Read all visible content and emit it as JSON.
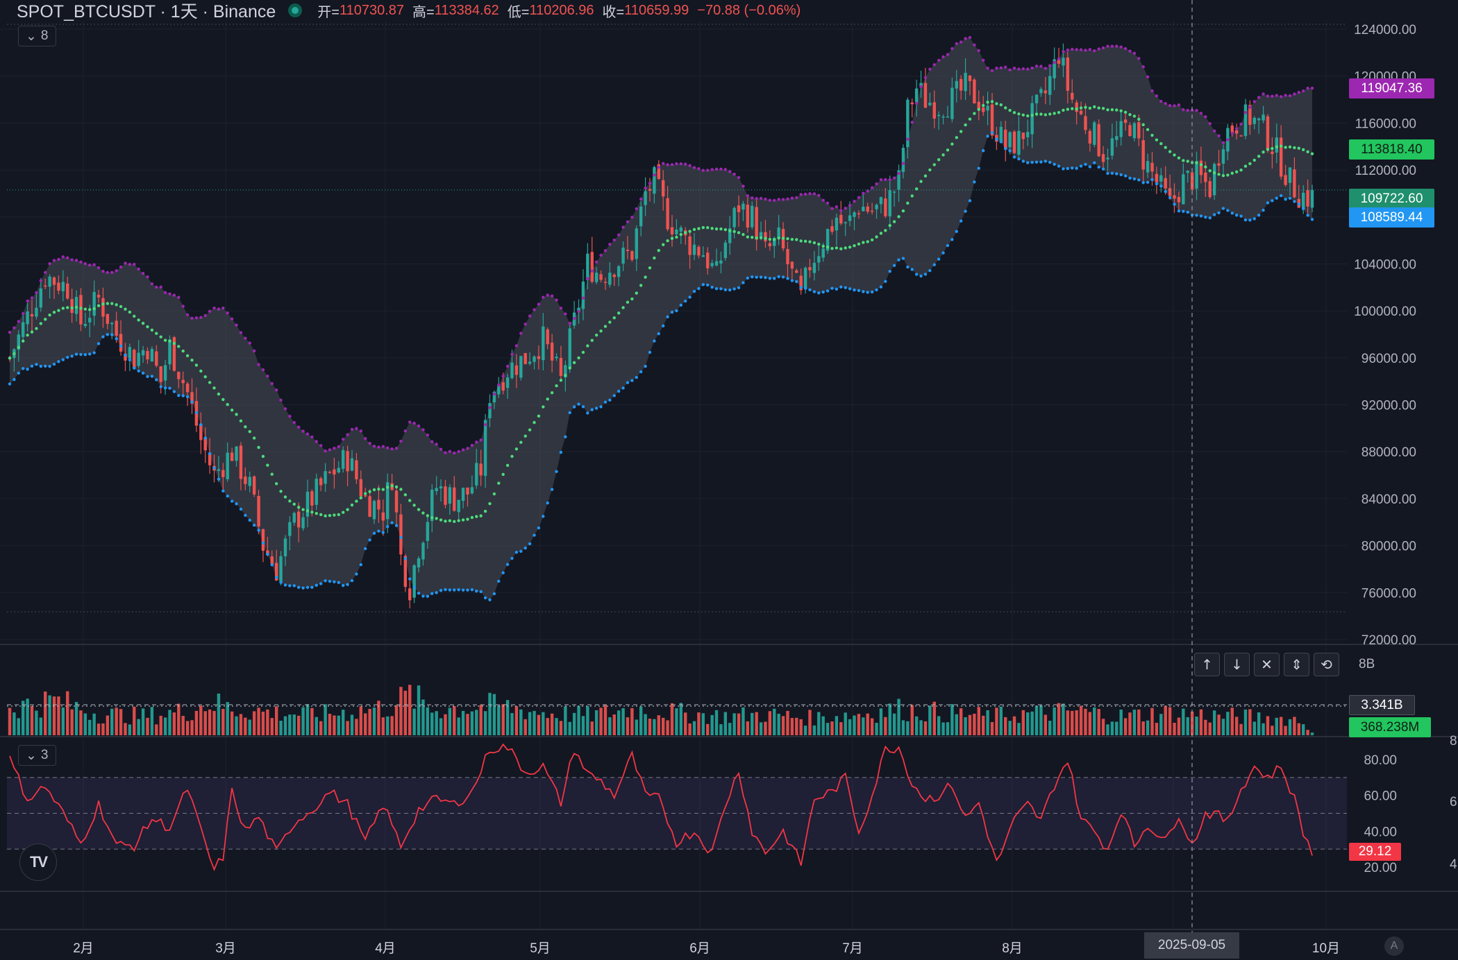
{
  "header": {
    "symbol": "SPOT_BTCUSDT · 1天 · Binance",
    "open_label": "开=",
    "open_value": "110730.87",
    "high_label": "高=",
    "high_value": "113384.62",
    "low_label": "低=",
    "low_value": "110206.96",
    "close_label": "收=",
    "close_value": "110659.99",
    "change": "−70.88 (−0.06%)"
  },
  "price_pane": {
    "indicator_toggle": "8",
    "axis_ticks": [
      "124000.00",
      "120000.00",
      "116000.00",
      "112000.00",
      "108000.00",
      "104000.00",
      "100000.00",
      "96000.00",
      "92000.00",
      "88000.00",
      "84000.00",
      "80000.00",
      "76000.00",
      "72000.00"
    ],
    "tags": {
      "upper_band": "119047.36",
      "middle_line": "113818.40",
      "last_price": "109722.60",
      "lower_band": "108589.44"
    }
  },
  "volume_pane": {
    "axis_label": "8B",
    "ma_tag": "3.341B",
    "last_volume_tag": "368.238M",
    "tool_icons": [
      "arrow-up-icon",
      "arrow-down-icon",
      "close-icon",
      "collapse-icon",
      "refresh-icon"
    ]
  },
  "rsi_pane": {
    "indicator_toggle": "3",
    "axis_ticks": [
      "80.00",
      "60.00",
      "40.00",
      "20.00"
    ],
    "rsi_tag": "29.12",
    "edge_labels": [
      "8",
      "6",
      "4"
    ]
  },
  "time_axis": {
    "months": [
      "2月",
      "3月",
      "4月",
      "5月",
      "6月",
      "7月",
      "8月",
      "10月"
    ],
    "crosshair_date": "2025-09-05",
    "auto_label": "A"
  },
  "colors": {
    "background": "#131722",
    "up": "#26a69a",
    "down": "#ef5350",
    "upper_band": "#9c27b0",
    "middle_band": "#4cdc7b",
    "lower_band": "#2196f3",
    "rsi_line": "#f23645",
    "rsi_band": "#7e57c2"
  },
  "chart_data": {
    "type": "candlestick",
    "anchors": [
      [
        0,
        96000
      ],
      [
        8,
        103000
      ],
      [
        13,
        102000
      ],
      [
        16,
        99000
      ],
      [
        20,
        101000
      ],
      [
        24,
        98000
      ],
      [
        28,
        96000
      ],
      [
        31,
        97000
      ],
      [
        34,
        94000
      ],
      [
        36,
        97000
      ],
      [
        38,
        95000
      ],
      [
        40,
        93000
      ],
      [
        43,
        89000
      ],
      [
        46,
        86000
      ],
      [
        50,
        88000
      ],
      [
        54,
        85000
      ],
      [
        57,
        80000
      ],
      [
        60,
        78000
      ],
      [
        64,
        82000
      ],
      [
        68,
        84000
      ],
      [
        72,
        86000
      ],
      [
        76,
        87500
      ],
      [
        80,
        84000
      ],
      [
        84,
        83000
      ],
      [
        86,
        86000
      ],
      [
        88,
        79000
      ],
      [
        90,
        76500
      ],
      [
        92,
        80000
      ],
      [
        96,
        85000
      ],
      [
        100,
        84000
      ],
      [
        103,
        84500
      ],
      [
        106,
        86500
      ],
      [
        108,
        93000
      ],
      [
        112,
        95000
      ],
      [
        116,
        96000
      ],
      [
        120,
        97500
      ],
      [
        124,
        94000
      ],
      [
        127,
        99000
      ],
      [
        130,
        104000
      ],
      [
        133,
        103000
      ],
      [
        136,
        104000
      ],
      [
        140,
        105000
      ],
      [
        143,
        110000
      ],
      [
        145,
        111000
      ],
      [
        148,
        108000
      ],
      [
        152,
        106000
      ],
      [
        156,
        105000
      ],
      [
        159,
        103000
      ],
      [
        161,
        106000
      ],
      [
        164,
        109000
      ],
      [
        167,
        108000
      ],
      [
        170,
        105000
      ],
      [
        173,
        106000
      ],
      [
        176,
        103000
      ],
      [
        178,
        101000
      ],
      [
        180,
        104000
      ],
      [
        183,
        106000
      ],
      [
        186,
        108000
      ],
      [
        188,
        107000
      ],
      [
        191,
        109000
      ],
      [
        194,
        108500
      ],
      [
        197,
        109000
      ],
      [
        200,
        111000
      ],
      [
        202,
        117000
      ],
      [
        204,
        119000
      ],
      [
        206,
        118000
      ],
      [
        209,
        117500
      ],
      [
        212,
        118000
      ],
      [
        215,
        119000
      ],
      [
        218,
        118000
      ],
      [
        221,
        116000
      ],
      [
        224,
        114000
      ],
      [
        227,
        114500
      ],
      [
        230,
        116500
      ],
      [
        233,
        118500
      ],
      [
        236,
        122000
      ],
      [
        238,
        119000
      ],
      [
        240,
        117000
      ],
      [
        243,
        115500
      ],
      [
        246,
        113500
      ],
      [
        249,
        114500
      ],
      [
        252,
        116000
      ],
      [
        255,
        113000
      ],
      [
        258,
        111000
      ],
      [
        261,
        109000
      ],
      [
        264,
        111000
      ],
      [
        267,
        111500
      ],
      [
        270,
        110500
      ],
      [
        273,
        115000
      ],
      [
        276,
        116000
      ],
      [
        279,
        116500
      ],
      [
        282,
        115500
      ],
      [
        285,
        113500
      ],
      [
        288,
        111000
      ],
      [
        290,
        110000
      ],
      [
        292,
        109700
      ]
    ],
    "rsi_anchors": [
      [
        0,
        80
      ],
      [
        4,
        58
      ],
      [
        8,
        65
      ],
      [
        12,
        50
      ],
      [
        16,
        33
      ],
      [
        20,
        55
      ],
      [
        24,
        32
      ],
      [
        28,
        32
      ],
      [
        32,
        47
      ],
      [
        36,
        42
      ],
      [
        40,
        64
      ],
      [
        43,
        40
      ],
      [
        46,
        18
      ],
      [
        48,
        26
      ],
      [
        50,
        62
      ],
      [
        53,
        40
      ],
      [
        56,
        48
      ],
      [
        60,
        28
      ],
      [
        64,
        45
      ],
      [
        68,
        52
      ],
      [
        72,
        62
      ],
      [
        76,
        55
      ],
      [
        80,
        34
      ],
      [
        84,
        55
      ],
      [
        88,
        32
      ],
      [
        92,
        52
      ],
      [
        96,
        58
      ],
      [
        100,
        55
      ],
      [
        104,
        62
      ],
      [
        108,
        86
      ],
      [
        112,
        87
      ],
      [
        116,
        73
      ],
      [
        120,
        76
      ],
      [
        124,
        56
      ],
      [
        127,
        86
      ],
      [
        130,
        72
      ],
      [
        133,
        68
      ],
      [
        136,
        60
      ],
      [
        140,
        82
      ],
      [
        143,
        60
      ],
      [
        146,
        58
      ],
      [
        150,
        34
      ],
      [
        154,
        40
      ],
      [
        158,
        28
      ],
      [
        161,
        55
      ],
      [
        164,
        74
      ],
      [
        167,
        40
      ],
      [
        170,
        28
      ],
      [
        174,
        40
      ],
      [
        178,
        22
      ],
      [
        181,
        58
      ],
      [
        185,
        62
      ],
      [
        188,
        70
      ],
      [
        191,
        40
      ],
      [
        194,
        60
      ],
      [
        197,
        86
      ],
      [
        200,
        87
      ],
      [
        203,
        67
      ],
      [
        206,
        58
      ],
      [
        209,
        60
      ],
      [
        212,
        66
      ],
      [
        215,
        47
      ],
      [
        218,
        56
      ],
      [
        222,
        22
      ],
      [
        226,
        46
      ],
      [
        229,
        55
      ],
      [
        232,
        46
      ],
      [
        235,
        66
      ],
      [
        238,
        80
      ],
      [
        241,
        47
      ],
      [
        244,
        40
      ],
      [
        247,
        30
      ],
      [
        250,
        52
      ],
      [
        253,
        32
      ],
      [
        256,
        44
      ],
      [
        260,
        34
      ],
      [
        263,
        50
      ],
      [
        266,
        32
      ],
      [
        269,
        50
      ],
      [
        271,
        50
      ],
      [
        274,
        45
      ],
      [
        277,
        64
      ],
      [
        280,
        76
      ],
      [
        283,
        70
      ],
      [
        286,
        76
      ],
      [
        289,
        58
      ],
      [
        291,
        40
      ],
      [
        293,
        27
      ],
      [
        295,
        28
      ],
      [
        298,
        29
      ]
    ],
    "volume_anchors": [
      [
        0,
        3.2
      ],
      [
        10,
        4.0
      ],
      [
        20,
        2.5
      ],
      [
        30,
        2.2
      ],
      [
        40,
        2.8
      ],
      [
        45,
        3.8
      ],
      [
        50,
        3.0
      ],
      [
        60,
        2.6
      ],
      [
        70,
        2.4
      ],
      [
        85,
        3.2
      ],
      [
        90,
        4.6
      ],
      [
        95,
        3.0
      ],
      [
        110,
        3.4
      ],
      [
        120,
        2.6
      ],
      [
        130,
        2.3
      ],
      [
        140,
        3.0
      ],
      [
        150,
        2.6
      ],
      [
        160,
        2.2
      ],
      [
        170,
        2.4
      ],
      [
        180,
        2.0
      ],
      [
        190,
        2.4
      ],
      [
        200,
        3.0
      ],
      [
        210,
        2.6
      ],
      [
        220,
        2.2
      ],
      [
        230,
        2.5
      ],
      [
        240,
        2.8
      ],
      [
        250,
        2.2
      ],
      [
        260,
        2.6
      ],
      [
        270,
        2.3
      ],
      [
        280,
        2.1
      ],
      [
        290,
        1.8
      ],
      [
        293,
        0.4
      ]
    ],
    "ylim": [
      72000,
      124000
    ],
    "rsi_levels": [
      70,
      50,
      30
    ],
    "volume_max": 8
  }
}
